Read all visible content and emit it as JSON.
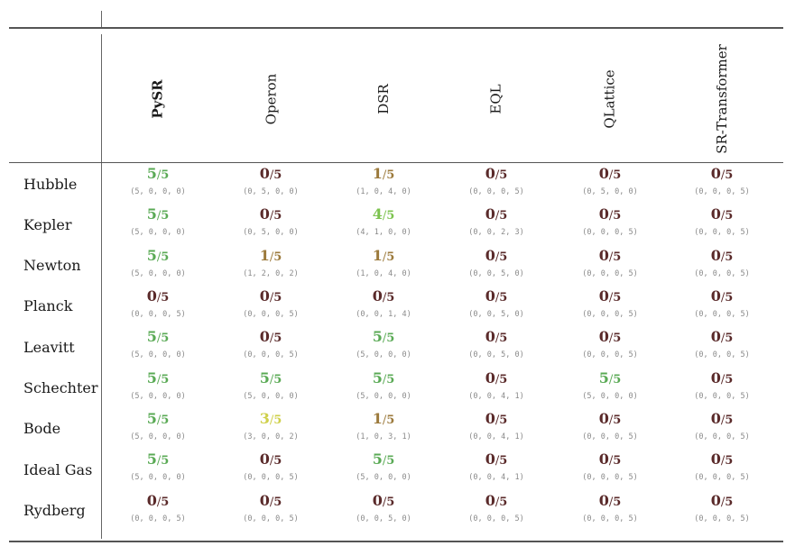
{
  "methods": [
    "PySR",
    "Operon",
    "DSR",
    "EQL",
    "QLattice",
    "SR-Transformer"
  ],
  "bold_method_index": 0,
  "colors": {
    "score_5": "#5aaa55",
    "score_4": "#7cc34e",
    "score_3": "#cfd04a",
    "score_1": "#9c7a3c",
    "score_0": "#5a2a2a",
    "rule": "#555555",
    "detail_text": "#8a8a8a"
  },
  "rows": [
    {
      "name": "Hubble",
      "cells": [
        {
          "score": "5",
          "denom": "5",
          "detail": "(5, 0, 0, 0)"
        },
        {
          "score": "0",
          "denom": "5",
          "detail": "(0, 5, 0, 0)"
        },
        {
          "score": "1",
          "denom": "5",
          "detail": "(1, 0, 4, 0)"
        },
        {
          "score": "0",
          "denom": "5",
          "detail": "(0, 0, 0, 5)"
        },
        {
          "score": "0",
          "denom": "5",
          "detail": "(0, 5, 0, 0)"
        },
        {
          "score": "0",
          "denom": "5",
          "detail": "(0, 0, 0, 5)"
        }
      ]
    },
    {
      "name": "Kepler",
      "cells": [
        {
          "score": "5",
          "denom": "5",
          "detail": "(5, 0, 0, 0)"
        },
        {
          "score": "0",
          "denom": "5",
          "detail": "(0, 5, 0, 0)"
        },
        {
          "score": "4",
          "denom": "5",
          "detail": "(4, 1, 0, 0)"
        },
        {
          "score": "0",
          "denom": "5",
          "detail": "(0, 0, 2, 3)"
        },
        {
          "score": "0",
          "denom": "5",
          "detail": "(0, 0, 0, 5)"
        },
        {
          "score": "0",
          "denom": "5",
          "detail": "(0, 0, 0, 5)"
        }
      ]
    },
    {
      "name": "Newton",
      "cells": [
        {
          "score": "5",
          "denom": "5",
          "detail": "(5, 0, 0, 0)"
        },
        {
          "score": "1",
          "denom": "5",
          "detail": "(1, 2, 0, 2)"
        },
        {
          "score": "1",
          "denom": "5",
          "detail": "(1, 0, 4, 0)"
        },
        {
          "score": "0",
          "denom": "5",
          "detail": "(0, 0, 5, 0)"
        },
        {
          "score": "0",
          "denom": "5",
          "detail": "(0, 0, 0, 5)"
        },
        {
          "score": "0",
          "denom": "5",
          "detail": "(0, 0, 0, 5)"
        }
      ]
    },
    {
      "name": "Planck",
      "cells": [
        {
          "score": "0",
          "denom": "5",
          "detail": "(0, 0, 0, 5)"
        },
        {
          "score": "0",
          "denom": "5",
          "detail": "(0, 0, 0, 5)"
        },
        {
          "score": "0",
          "denom": "5",
          "detail": "(0, 0, 1, 4)"
        },
        {
          "score": "0",
          "denom": "5",
          "detail": "(0, 0, 5, 0)"
        },
        {
          "score": "0",
          "denom": "5",
          "detail": "(0, 0, 0, 5)"
        },
        {
          "score": "0",
          "denom": "5",
          "detail": "(0, 0, 0, 5)"
        }
      ]
    },
    {
      "name": "Leavitt",
      "cells": [
        {
          "score": "5",
          "denom": "5",
          "detail": "(5, 0, 0, 0)"
        },
        {
          "score": "0",
          "denom": "5",
          "detail": "(0, 0, 0, 5)"
        },
        {
          "score": "5",
          "denom": "5",
          "detail": "(5, 0, 0, 0)"
        },
        {
          "score": "0",
          "denom": "5",
          "detail": "(0, 0, 5, 0)"
        },
        {
          "score": "0",
          "denom": "5",
          "detail": "(0, 0, 0, 5)"
        },
        {
          "score": "0",
          "denom": "5",
          "detail": "(0, 0, 0, 5)"
        }
      ]
    },
    {
      "name": "Schechter",
      "cells": [
        {
          "score": "5",
          "denom": "5",
          "detail": "(5, 0, 0, 0)"
        },
        {
          "score": "5",
          "denom": "5",
          "detail": "(5, 0, 0, 0)"
        },
        {
          "score": "5",
          "denom": "5",
          "detail": "(5, 0, 0, 0)"
        },
        {
          "score": "0",
          "denom": "5",
          "detail": "(0, 0, 4, 1)"
        },
        {
          "score": "5",
          "denom": "5",
          "detail": "(5, 0, 0, 0)"
        },
        {
          "score": "0",
          "denom": "5",
          "detail": "(0, 0, 0, 5)"
        }
      ]
    },
    {
      "name": "Bode",
      "cells": [
        {
          "score": "5",
          "denom": "5",
          "detail": "(5, 0, 0, 0)"
        },
        {
          "score": "3",
          "denom": "5",
          "detail": "(3, 0, 0, 2)"
        },
        {
          "score": "1",
          "denom": "5",
          "detail": "(1, 0, 3, 1)"
        },
        {
          "score": "0",
          "denom": "5",
          "detail": "(0, 0, 4, 1)"
        },
        {
          "score": "0",
          "denom": "5",
          "detail": "(0, 0, 0, 5)"
        },
        {
          "score": "0",
          "denom": "5",
          "detail": "(0, 0, 0, 5)"
        }
      ]
    },
    {
      "name": "Ideal Gas",
      "cells": [
        {
          "score": "5",
          "denom": "5",
          "detail": "(5, 0, 0, 0)"
        },
        {
          "score": "0",
          "denom": "5",
          "detail": "(0, 0, 0, 5)"
        },
        {
          "score": "5",
          "denom": "5",
          "detail": "(5, 0, 0, 0)"
        },
        {
          "score": "0",
          "denom": "5",
          "detail": "(0, 0, 4, 1)"
        },
        {
          "score": "0",
          "denom": "5",
          "detail": "(0, 0, 0, 5)"
        },
        {
          "score": "0",
          "denom": "5",
          "detail": "(0, 0, 0, 5)"
        }
      ]
    },
    {
      "name": "Rydberg",
      "cells": [
        {
          "score": "0",
          "denom": "5",
          "detail": "(0, 0, 0, 5)"
        },
        {
          "score": "0",
          "denom": "5",
          "detail": "(0, 0, 0, 5)"
        },
        {
          "score": "0",
          "denom": "5",
          "detail": "(0, 0, 5, 0)"
        },
        {
          "score": "0",
          "denom": "5",
          "detail": "(0, 0, 0, 5)"
        },
        {
          "score": "0",
          "denom": "5",
          "detail": "(0, 0, 0, 5)"
        },
        {
          "score": "0",
          "denom": "5",
          "detail": "(0, 0, 0, 5)"
        }
      ]
    }
  ]
}
